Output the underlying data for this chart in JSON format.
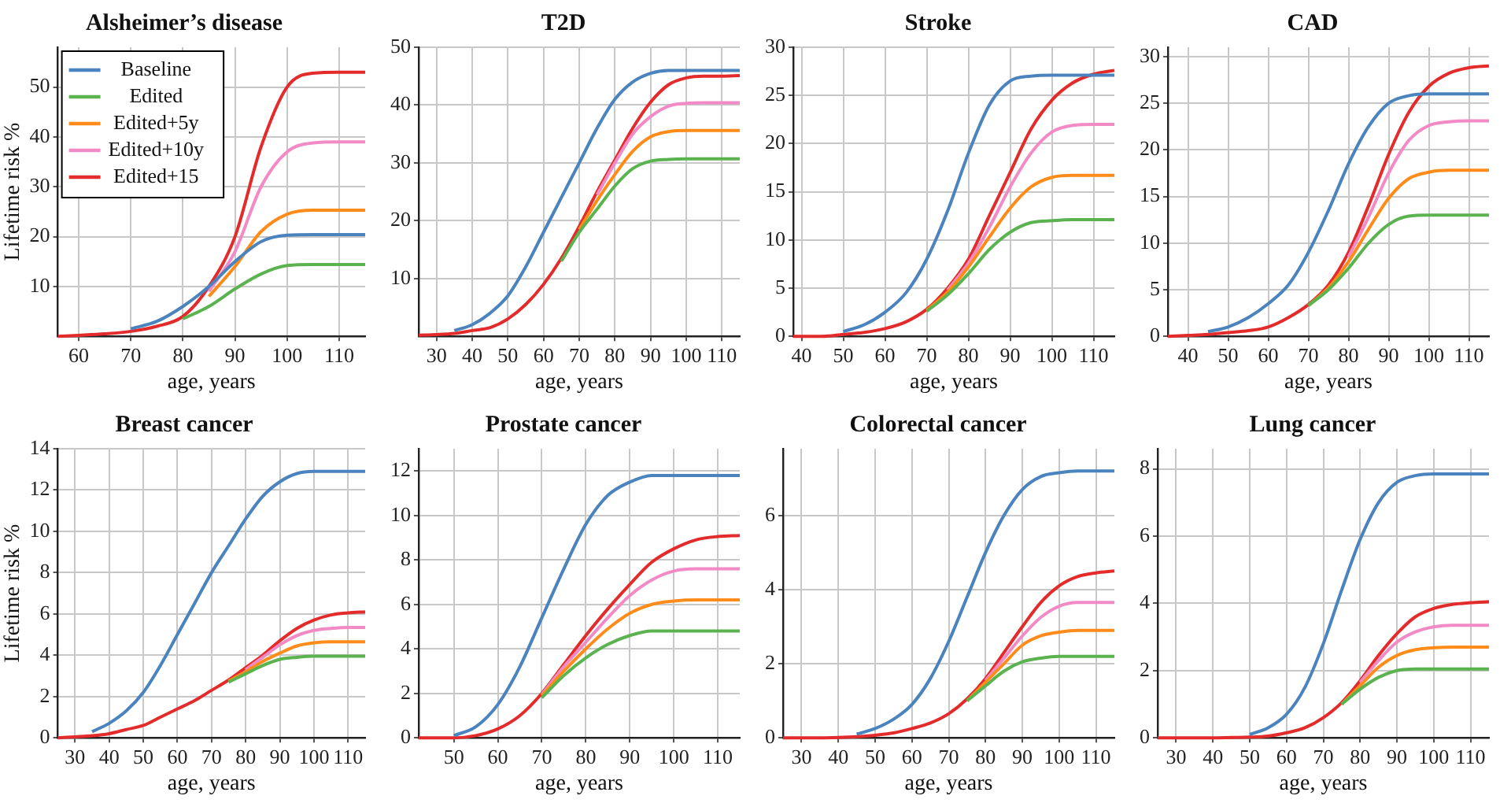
{
  "chart_data": [
    {
      "type": "line",
      "title": "Alsheimer’s disease",
      "xlabel": "age, years",
      "ylabel": "Lifetime risk %",
      "xlim": [
        56,
        115
      ],
      "xticks": [
        60,
        70,
        80,
        90,
        100,
        110
      ],
      "ylim": [
        0,
        58
      ],
      "yticks": [
        10,
        20,
        30,
        40,
        50
      ],
      "grid": true,
      "legend": "top left",
      "x": [
        56,
        60,
        65,
        70,
        75,
        80,
        85,
        90,
        95,
        100,
        105,
        110,
        115
      ],
      "series": [
        {
          "name": "Baseline",
          "color": "#4a83bd",
          "values": [
            null,
            null,
            null,
            1.5,
            3,
            6,
            10,
            15,
            19,
            20.3,
            20.4,
            20.4,
            20.4
          ]
        },
        {
          "name": "Edited",
          "color": "#5ab34f",
          "values": [
            null,
            null,
            null,
            null,
            null,
            3.5,
            6,
            9.5,
            12.5,
            14.2,
            14.4,
            14.4,
            14.4
          ]
        },
        {
          "name": "Edited+5y",
          "color": "#ff8c1a",
          "values": [
            null,
            null,
            null,
            null,
            null,
            null,
            8,
            14,
            21,
            24.5,
            25.3,
            25.3,
            25.3
          ]
        },
        {
          "name": "Edited+10y",
          "color": "#f28ac5",
          "values": [
            null,
            null,
            null,
            null,
            null,
            null,
            9,
            17,
            30,
            37,
            38.8,
            39,
            39
          ]
        },
        {
          "name": "Edited+15",
          "color": "#e32b2b",
          "values": [
            0,
            0.2,
            0.5,
            1,
            2,
            4,
            10,
            20,
            38,
            50,
            52.8,
            53,
            53
          ]
        }
      ]
    },
    {
      "type": "line",
      "title": "T2D",
      "xlabel": "age, years",
      "xlim": [
        25,
        115
      ],
      "xticks": [
        30,
        40,
        50,
        60,
        70,
        80,
        90,
        100,
        110
      ],
      "ylim": [
        0,
        50
      ],
      "yticks": [
        10,
        20,
        30,
        40,
        50
      ],
      "grid": true,
      "x": [
        25,
        30,
        35,
        40,
        45,
        50,
        55,
        60,
        65,
        70,
        75,
        80,
        85,
        90,
        95,
        100,
        105,
        110,
        115
      ],
      "series": [
        {
          "color": "#4a83bd",
          "values": [
            null,
            null,
            1,
            2,
            4,
            7,
            12,
            18,
            24,
            30,
            36,
            41,
            44,
            45.5,
            46,
            46,
            46,
            46,
            46
          ]
        },
        {
          "color": "#5ab34f",
          "values": [
            null,
            null,
            null,
            null,
            null,
            null,
            null,
            null,
            13,
            18,
            22,
            26,
            29,
            30.3,
            30.6,
            30.7,
            30.7,
            30.7,
            30.7
          ]
        },
        {
          "color": "#ff8c1a",
          "values": [
            null,
            null,
            null,
            null,
            null,
            null,
            null,
            null,
            null,
            18.5,
            23.5,
            28,
            32,
            34.5,
            35.4,
            35.6,
            35.6,
            35.6,
            35.6
          ]
        },
        {
          "color": "#f28ac5",
          "values": [
            null,
            null,
            null,
            null,
            null,
            null,
            null,
            null,
            null,
            null,
            24.5,
            30,
            35,
            38,
            39.8,
            40.3,
            40.4,
            40.4,
            40.4
          ]
        },
        {
          "color": "#e32b2b",
          "values": [
            0.2,
            0.3,
            0.5,
            1,
            1.5,
            3,
            5.5,
            9,
            13.5,
            19,
            25,
            30.5,
            36,
            40.5,
            43.5,
            44.7,
            45,
            45,
            45.1
          ]
        }
      ]
    },
    {
      "type": "line",
      "title": "Stroke",
      "xlabel": "age, years",
      "xlim": [
        38,
        115
      ],
      "xticks": [
        40,
        50,
        60,
        70,
        80,
        90,
        100,
        110
      ],
      "ylim": [
        0,
        30
      ],
      "yticks": [
        0,
        5,
        10,
        15,
        20,
        25,
        30
      ],
      "grid": true,
      "x": [
        38,
        40,
        45,
        50,
        55,
        60,
        65,
        70,
        75,
        80,
        85,
        90,
        95,
        100,
        105,
        110,
        115
      ],
      "series": [
        {
          "color": "#4a83bd",
          "values": [
            null,
            null,
            null,
            0.5,
            1.2,
            2.5,
            4.5,
            8,
            13,
            19,
            24,
            26.5,
            27,
            27.1,
            27.1,
            27.1,
            27.1
          ]
        },
        {
          "color": "#5ab34f",
          "values": [
            null,
            null,
            null,
            null,
            null,
            null,
            null,
            2.6,
            4.3,
            6.5,
            9,
            10.8,
            11.8,
            12,
            12.1,
            12.1,
            12.1
          ]
        },
        {
          "color": "#ff8c1a",
          "values": [
            null,
            null,
            null,
            null,
            null,
            null,
            null,
            2.7,
            4.6,
            7.2,
            10.3,
            13.3,
            15.5,
            16.5,
            16.7,
            16.7,
            16.7
          ]
        },
        {
          "color": "#f28ac5",
          "values": [
            null,
            null,
            null,
            null,
            null,
            null,
            null,
            null,
            4.8,
            7.6,
            11.3,
            15.5,
            19,
            21.2,
            21.9,
            22,
            22
          ]
        },
        {
          "color": "#e32b2b",
          "values": [
            0,
            0,
            0,
            0.2,
            0.4,
            0.8,
            1.5,
            2.8,
            5,
            8,
            12.5,
            17,
            21.5,
            24.5,
            26.3,
            27.2,
            27.6
          ]
        }
      ]
    },
    {
      "type": "line",
      "title": "CAD",
      "xlabel": "age, years",
      "xlim": [
        35,
        115
      ],
      "xticks": [
        40,
        50,
        60,
        70,
        80,
        90,
        100,
        110
      ],
      "ylim": [
        0,
        31
      ],
      "yticks": [
        0,
        5,
        10,
        15,
        20,
        25,
        30
      ],
      "grid": true,
      "x": [
        35,
        40,
        45,
        50,
        55,
        60,
        65,
        70,
        75,
        80,
        85,
        90,
        95,
        100,
        105,
        110,
        115
      ],
      "series": [
        {
          "color": "#4a83bd",
          "values": [
            null,
            null,
            0.5,
            1,
            2,
            3.5,
            5.5,
            9,
            13.5,
            18.5,
            22.5,
            25,
            25.8,
            26,
            26,
            26,
            26
          ]
        },
        {
          "color": "#5ab34f",
          "values": [
            null,
            null,
            null,
            null,
            null,
            null,
            null,
            3.3,
            5,
            7.3,
            10,
            12,
            12.9,
            13,
            13,
            13,
            13
          ]
        },
        {
          "color": "#ff8c1a",
          "values": [
            null,
            null,
            null,
            null,
            null,
            null,
            null,
            3.3,
            5.2,
            8,
            11.5,
            14.8,
            16.9,
            17.6,
            17.8,
            17.8,
            17.8
          ]
        },
        {
          "color": "#f28ac5",
          "values": [
            null,
            null,
            null,
            null,
            null,
            null,
            null,
            null,
            null,
            8.5,
            12.8,
            17.5,
            21,
            22.6,
            23,
            23.1,
            23.1
          ]
        },
        {
          "color": "#e32b2b",
          "values": [
            0,
            0.1,
            0.2,
            0.4,
            0.6,
            1,
            2,
            3.4,
            5.5,
            9,
            14,
            19.5,
            24,
            26.8,
            28.2,
            28.8,
            29
          ]
        }
      ]
    },
    {
      "type": "line",
      "title": "Breast cancer",
      "xlabel": "age, years",
      "ylabel": "Lifetime risk %",
      "xlim": [
        25,
        115
      ],
      "xticks": [
        30,
        40,
        50,
        60,
        70,
        80,
        90,
        100,
        110
      ],
      "ylim": [
        0,
        14
      ],
      "yticks": [
        0,
        2,
        4,
        6,
        8,
        10,
        12,
        14
      ],
      "grid": true,
      "x": [
        25,
        30,
        35,
        40,
        45,
        50,
        55,
        60,
        65,
        70,
        75,
        80,
        85,
        90,
        95,
        100,
        105,
        110,
        115
      ],
      "series": [
        {
          "color": "#4a83bd",
          "values": [
            null,
            null,
            0.3,
            0.7,
            1.3,
            2.2,
            3.5,
            5,
            6.5,
            8,
            9.3,
            10.6,
            11.7,
            12.4,
            12.8,
            12.9,
            12.9,
            12.9,
            12.9
          ]
        },
        {
          "color": "#5ab34f",
          "values": [
            null,
            null,
            null,
            null,
            null,
            null,
            null,
            null,
            null,
            null,
            2.7,
            3.1,
            3.5,
            3.8,
            3.9,
            3.95,
            3.95,
            3.95,
            3.95
          ]
        },
        {
          "color": "#ff8c1a",
          "values": [
            null,
            null,
            null,
            null,
            null,
            null,
            null,
            null,
            null,
            null,
            2.75,
            3.2,
            3.7,
            4.1,
            4.45,
            4.6,
            4.65,
            4.65,
            4.65
          ]
        },
        {
          "color": "#f28ac5",
          "values": [
            null,
            null,
            null,
            null,
            null,
            null,
            null,
            null,
            null,
            null,
            null,
            3.3,
            3.9,
            4.5,
            4.95,
            5.2,
            5.3,
            5.35,
            5.35
          ]
        },
        {
          "color": "#e32b2b",
          "values": [
            0,
            0.05,
            0.1,
            0.2,
            0.4,
            0.6,
            1,
            1.4,
            1.8,
            2.3,
            2.8,
            3.4,
            4,
            4.7,
            5.3,
            5.7,
            5.95,
            6.05,
            6.1
          ]
        }
      ]
    },
    {
      "type": "line",
      "title": "Prostate cancer",
      "xlabel": "age, years",
      "xlim": [
        42,
        115
      ],
      "xticks": [
        50,
        60,
        70,
        80,
        90,
        100,
        110
      ],
      "ylim": [
        0,
        13
      ],
      "yticks": [
        0,
        2,
        4,
        6,
        8,
        10,
        12
      ],
      "grid": true,
      "x": [
        42,
        45,
        50,
        55,
        60,
        65,
        70,
        75,
        80,
        85,
        90,
        95,
        100,
        105,
        110,
        115
      ],
      "series": [
        {
          "color": "#4a83bd",
          "values": [
            null,
            null,
            0.1,
            0.5,
            1.5,
            3.2,
            5.4,
            7.6,
            9.6,
            10.9,
            11.5,
            11.8,
            11.8,
            11.8,
            11.8,
            11.8
          ]
        },
        {
          "color": "#5ab34f",
          "values": [
            null,
            null,
            null,
            null,
            null,
            null,
            1.8,
            2.8,
            3.6,
            4.2,
            4.6,
            4.8,
            4.8,
            4.8,
            4.8,
            4.8
          ]
        },
        {
          "color": "#ff8c1a",
          "values": [
            null,
            null,
            null,
            null,
            null,
            null,
            1.9,
            3,
            4,
            4.9,
            5.6,
            6,
            6.15,
            6.2,
            6.2,
            6.2
          ]
        },
        {
          "color": "#f28ac5",
          "values": [
            null,
            null,
            null,
            null,
            null,
            null,
            1.95,
            3.2,
            4.3,
            5.4,
            6.4,
            7.1,
            7.5,
            7.6,
            7.6,
            7.6
          ]
        },
        {
          "color": "#e32b2b",
          "values": [
            0,
            0,
            0,
            0.1,
            0.4,
            1,
            2,
            3.3,
            4.6,
            5.8,
            6.9,
            7.9,
            8.5,
            8.9,
            9.05,
            9.1
          ]
        }
      ]
    },
    {
      "type": "line",
      "title": "Colorectal cancer",
      "xlabel": "age, years",
      "xlim": [
        25,
        115
      ],
      "xticks": [
        30,
        40,
        50,
        60,
        70,
        80,
        90,
        100,
        110
      ],
      "ylim": [
        0,
        7.8
      ],
      "yticks": [
        0,
        2,
        4,
        6
      ],
      "grid": true,
      "x": [
        25,
        30,
        35,
        40,
        45,
        50,
        55,
        60,
        65,
        70,
        75,
        80,
        85,
        90,
        95,
        100,
        105,
        110,
        115
      ],
      "series": [
        {
          "color": "#4a83bd",
          "values": [
            null,
            null,
            null,
            null,
            0.1,
            0.25,
            0.5,
            0.9,
            1.6,
            2.6,
            3.8,
            5,
            6,
            6.7,
            7.05,
            7.15,
            7.2,
            7.2,
            7.2
          ]
        },
        {
          "color": "#5ab34f",
          "values": [
            null,
            null,
            null,
            null,
            null,
            null,
            null,
            null,
            null,
            null,
            1,
            1.4,
            1.8,
            2.05,
            2.15,
            2.2,
            2.2,
            2.2,
            2.2
          ]
        },
        {
          "color": "#ff8c1a",
          "values": [
            null,
            null,
            null,
            null,
            null,
            null,
            null,
            null,
            null,
            null,
            1,
            1.5,
            2,
            2.5,
            2.75,
            2.85,
            2.9,
            2.9,
            2.9
          ]
        },
        {
          "color": "#f28ac5",
          "values": [
            null,
            null,
            null,
            null,
            null,
            null,
            null,
            null,
            null,
            null,
            null,
            1.55,
            2.15,
            2.75,
            3.25,
            3.55,
            3.65,
            3.65,
            3.65
          ]
        },
        {
          "color": "#e32b2b",
          "values": [
            0,
            0,
            0,
            0.01,
            0.03,
            0.07,
            0.13,
            0.25,
            0.4,
            0.65,
            1.05,
            1.6,
            2.3,
            3,
            3.65,
            4.1,
            4.35,
            4.45,
            4.5
          ]
        }
      ]
    },
    {
      "type": "line",
      "title": "Lung cancer",
      "xlabel": "age, years",
      "xlim": [
        25,
        115
      ],
      "xticks": [
        30,
        40,
        50,
        60,
        70,
        80,
        90,
        100,
        110
      ],
      "ylim": [
        0,
        8.6
      ],
      "yticks": [
        0,
        2,
        4,
        6,
        8
      ],
      "grid": true,
      "x": [
        25,
        30,
        35,
        40,
        45,
        50,
        55,
        60,
        65,
        70,
        75,
        80,
        85,
        90,
        95,
        100,
        105,
        110,
        115
      ],
      "series": [
        {
          "color": "#4a83bd",
          "values": [
            null,
            null,
            null,
            null,
            null,
            0.1,
            0.3,
            0.7,
            1.5,
            2.8,
            4.4,
            5.9,
            7,
            7.6,
            7.8,
            7.85,
            7.85,
            7.85,
            7.85
          ]
        },
        {
          "color": "#5ab34f",
          "values": [
            null,
            null,
            null,
            null,
            null,
            null,
            null,
            null,
            null,
            null,
            1,
            1.45,
            1.8,
            2,
            2.05,
            2.05,
            2.05,
            2.05,
            2.05
          ]
        },
        {
          "color": "#ff8c1a",
          "values": [
            null,
            null,
            null,
            null,
            null,
            null,
            null,
            null,
            null,
            null,
            1,
            1.55,
            2.1,
            2.45,
            2.62,
            2.68,
            2.7,
            2.7,
            2.7
          ]
        },
        {
          "color": "#f28ac5",
          "values": [
            null,
            null,
            null,
            null,
            null,
            null,
            null,
            null,
            null,
            null,
            null,
            1.65,
            2.3,
            2.85,
            3.15,
            3.3,
            3.35,
            3.35,
            3.35
          ]
        },
        {
          "color": "#e32b2b",
          "values": [
            0,
            0,
            0,
            0,
            0.01,
            0.02,
            0.05,
            0.15,
            0.3,
            0.6,
            1.05,
            1.7,
            2.45,
            3.1,
            3.6,
            3.85,
            3.97,
            4.02,
            4.05
          ]
        }
      ]
    }
  ]
}
